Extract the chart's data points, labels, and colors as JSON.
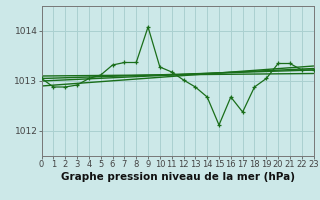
{
  "title": "Graphe pression niveau de la mer (hPa)",
  "background_color": "#cce8e8",
  "grid_color": "#aad0d0",
  "line_color": "#1a6e1a",
  "x_min": 0,
  "x_max": 23,
  "y_min": 1011.5,
  "y_max": 1014.5,
  "yticks": [
    1012,
    1013,
    1014
  ],
  "xticks": [
    0,
    1,
    2,
    3,
    4,
    5,
    6,
    7,
    8,
    9,
    10,
    11,
    12,
    13,
    14,
    15,
    16,
    17,
    18,
    19,
    20,
    21,
    22,
    23
  ],
  "main_line_x": [
    0,
    1,
    2,
    3,
    4,
    5,
    6,
    7,
    8,
    9,
    10,
    11,
    12,
    13,
    14,
    15,
    16,
    17,
    18,
    19,
    20,
    21,
    22,
    23
  ],
  "main_line_y": [
    1013.05,
    1012.88,
    1012.88,
    1012.92,
    1013.05,
    1013.12,
    1013.32,
    1013.37,
    1013.37,
    1014.08,
    1013.28,
    1013.18,
    1013.02,
    1012.88,
    1012.68,
    1012.12,
    1012.68,
    1012.38,
    1012.88,
    1013.05,
    1013.35,
    1013.35,
    1013.22,
    1013.22
  ],
  "trend_lines": [
    {
      "x": [
        0,
        23
      ],
      "y": [
        1013.05,
        1013.22
      ],
      "lw": 1.0
    },
    {
      "x": [
        0,
        23
      ],
      "y": [
        1013.0,
        1013.25
      ],
      "lw": 1.0
    },
    {
      "x": [
        0,
        23
      ],
      "y": [
        1012.9,
        1013.3
      ],
      "lw": 1.0
    },
    {
      "x": [
        0,
        23
      ],
      "y": [
        1013.1,
        1013.15
      ],
      "lw": 1.0
    }
  ],
  "title_fontsize": 7.5,
  "tick_fontsize": 6.0,
  "ytick_fontsize": 6.5
}
